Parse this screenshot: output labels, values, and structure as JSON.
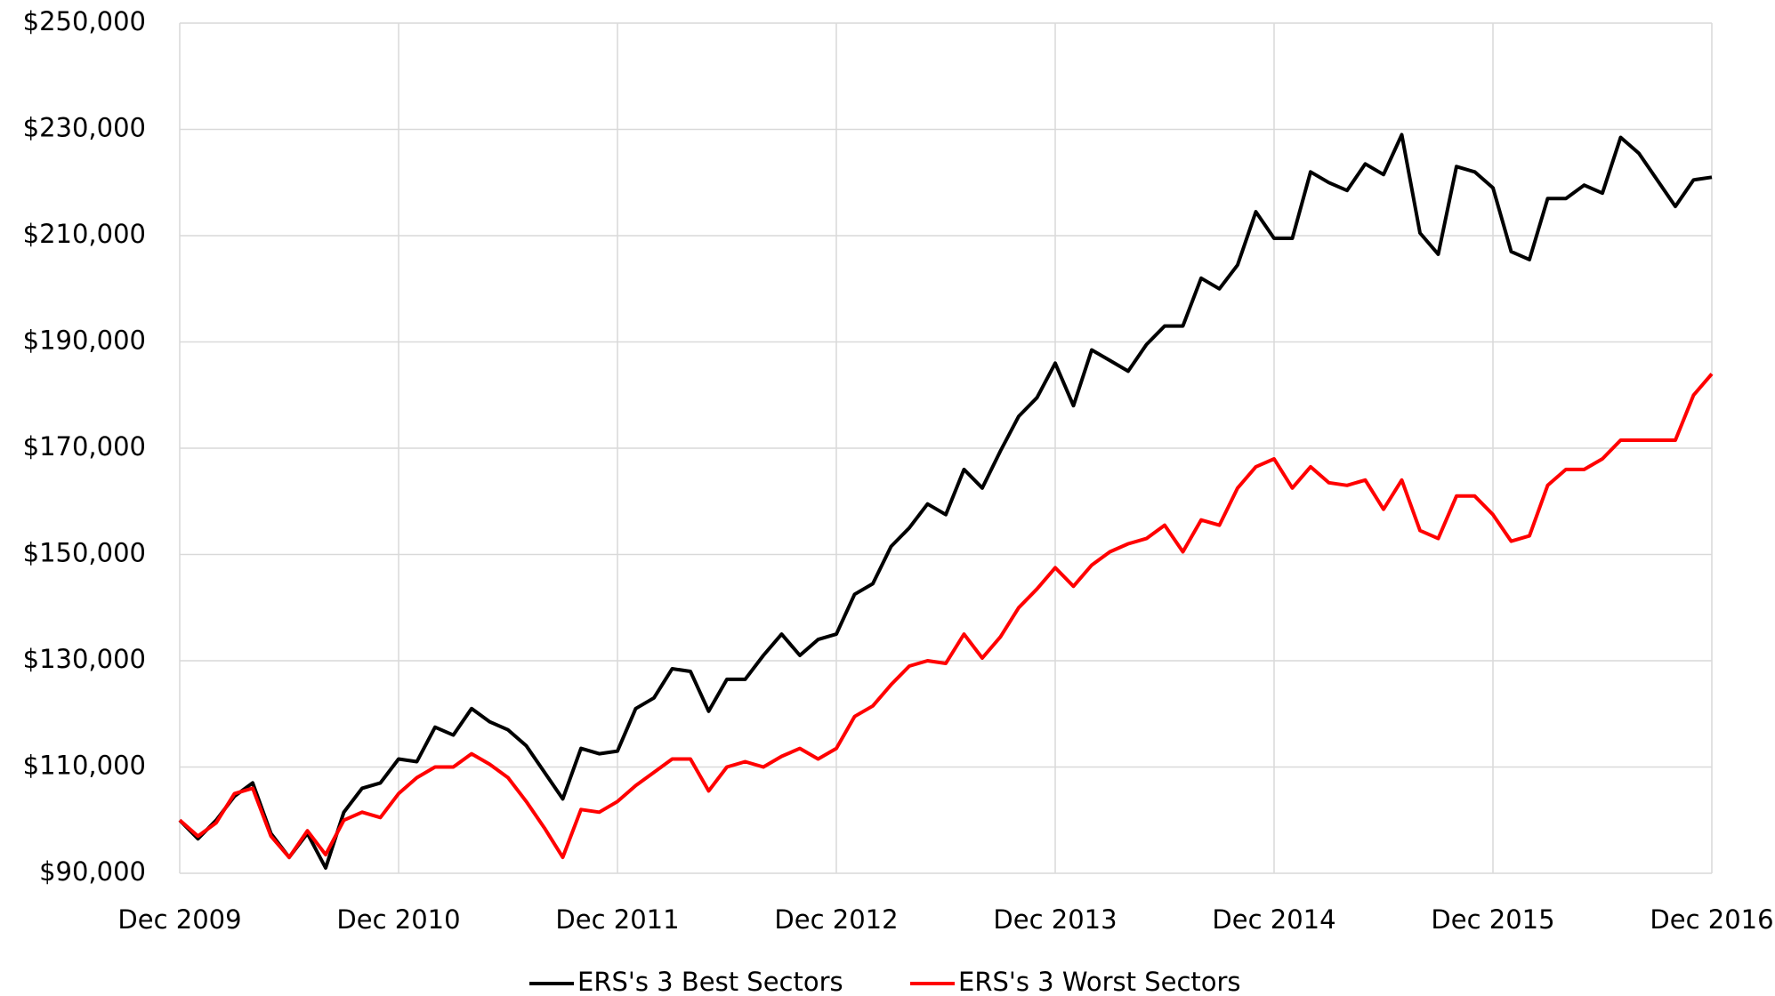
{
  "chart_data": {
    "type": "line",
    "categories": [
      "Dec 2009",
      null,
      null,
      null,
      null,
      null,
      null,
      null,
      null,
      null,
      null,
      null,
      "Dec 2010",
      null,
      null,
      null,
      null,
      null,
      null,
      null,
      null,
      null,
      null,
      null,
      "Dec 2011",
      null,
      null,
      null,
      null,
      null,
      null,
      null,
      null,
      null,
      null,
      null,
      "Dec 2012",
      null,
      null,
      null,
      null,
      null,
      null,
      null,
      null,
      null,
      null,
      null,
      "Dec 2013",
      null,
      null,
      null,
      null,
      null,
      null,
      null,
      null,
      null,
      null,
      null,
      "Dec 2014",
      null,
      null,
      null,
      null,
      null,
      null,
      null,
      null,
      null,
      null,
      null,
      "Dec 2015",
      null,
      null,
      null,
      null,
      null,
      null,
      null,
      null,
      null,
      null,
      null,
      "Dec 2016"
    ],
    "series": [
      {
        "name": "ERS's 3 Best Sectors",
        "color": "#000000",
        "values": [
          100000,
          96500,
          100000,
          104500,
          107000,
          97500,
          93000,
          97500,
          91000,
          101500,
          106000,
          107000,
          111500,
          111000,
          117500,
          116000,
          121000,
          118500,
          117000,
          114000,
          109000,
          104000,
          113500,
          112500,
          113000,
          121000,
          123000,
          128500,
          128000,
          120500,
          126500,
          126500,
          131000,
          135000,
          131000,
          134000,
          135000,
          142500,
          144500,
          151500,
          155000,
          159500,
          157500,
          166000,
          162500,
          169500,
          176000,
          179500,
          186000,
          178000,
          188500,
          186500,
          184500,
          189500,
          193000,
          193000,
          202000,
          200000,
          204500,
          214500,
          209500,
          209500,
          222000,
          220000,
          218500,
          223500,
          221500,
          229000,
          210500,
          206500,
          223000,
          222000,
          219000,
          207000,
          205500,
          217000,
          217000,
          219500,
          218000,
          228500,
          225500,
          220500,
          215500,
          220500,
          221000
        ]
      },
      {
        "name": "ERS's 3 Worst Sectors",
        "color": "#ff0000",
        "values": [
          100000,
          97000,
          99500,
          105000,
          106000,
          97000,
          93000,
          98000,
          93500,
          100000,
          101500,
          100500,
          105000,
          108000,
          110000,
          110000,
          112500,
          110500,
          108000,
          103500,
          98500,
          93000,
          102000,
          101500,
          103500,
          106500,
          109000,
          111500,
          111500,
          105500,
          110000,
          111000,
          110000,
          112000,
          113500,
          111500,
          113500,
          119500,
          121500,
          125500,
          129000,
          130000,
          129500,
          135000,
          130500,
          134500,
          140000,
          143500,
          147500,
          144000,
          148000,
          150500,
          152000,
          153000,
          155500,
          150500,
          156500,
          155500,
          162500,
          166500,
          168000,
          162500,
          166500,
          163500,
          163000,
          164000,
          158500,
          164000,
          154500,
          153000,
          161000,
          161000,
          157500,
          152500,
          153500,
          163000,
          166000,
          166000,
          168000,
          171500,
          171500,
          171500,
          171500,
          180000,
          184000
        ]
      }
    ],
    "ylim": [
      90000,
      250000
    ],
    "yticks": [
      {
        "value": 90000,
        "label": "$90,000"
      },
      {
        "value": 110000,
        "label": "$110,000"
      },
      {
        "value": 130000,
        "label": "$130,000"
      },
      {
        "value": 150000,
        "label": "$150,000"
      },
      {
        "value": 170000,
        "label": "$170,000"
      },
      {
        "value": 190000,
        "label": "$190,000"
      },
      {
        "value": 210000,
        "label": "$210,000"
      },
      {
        "value": 230000,
        "label": "$230,000"
      },
      {
        "value": 250000,
        "label": "$250,000"
      }
    ],
    "grid": true,
    "legend": "bottom"
  }
}
